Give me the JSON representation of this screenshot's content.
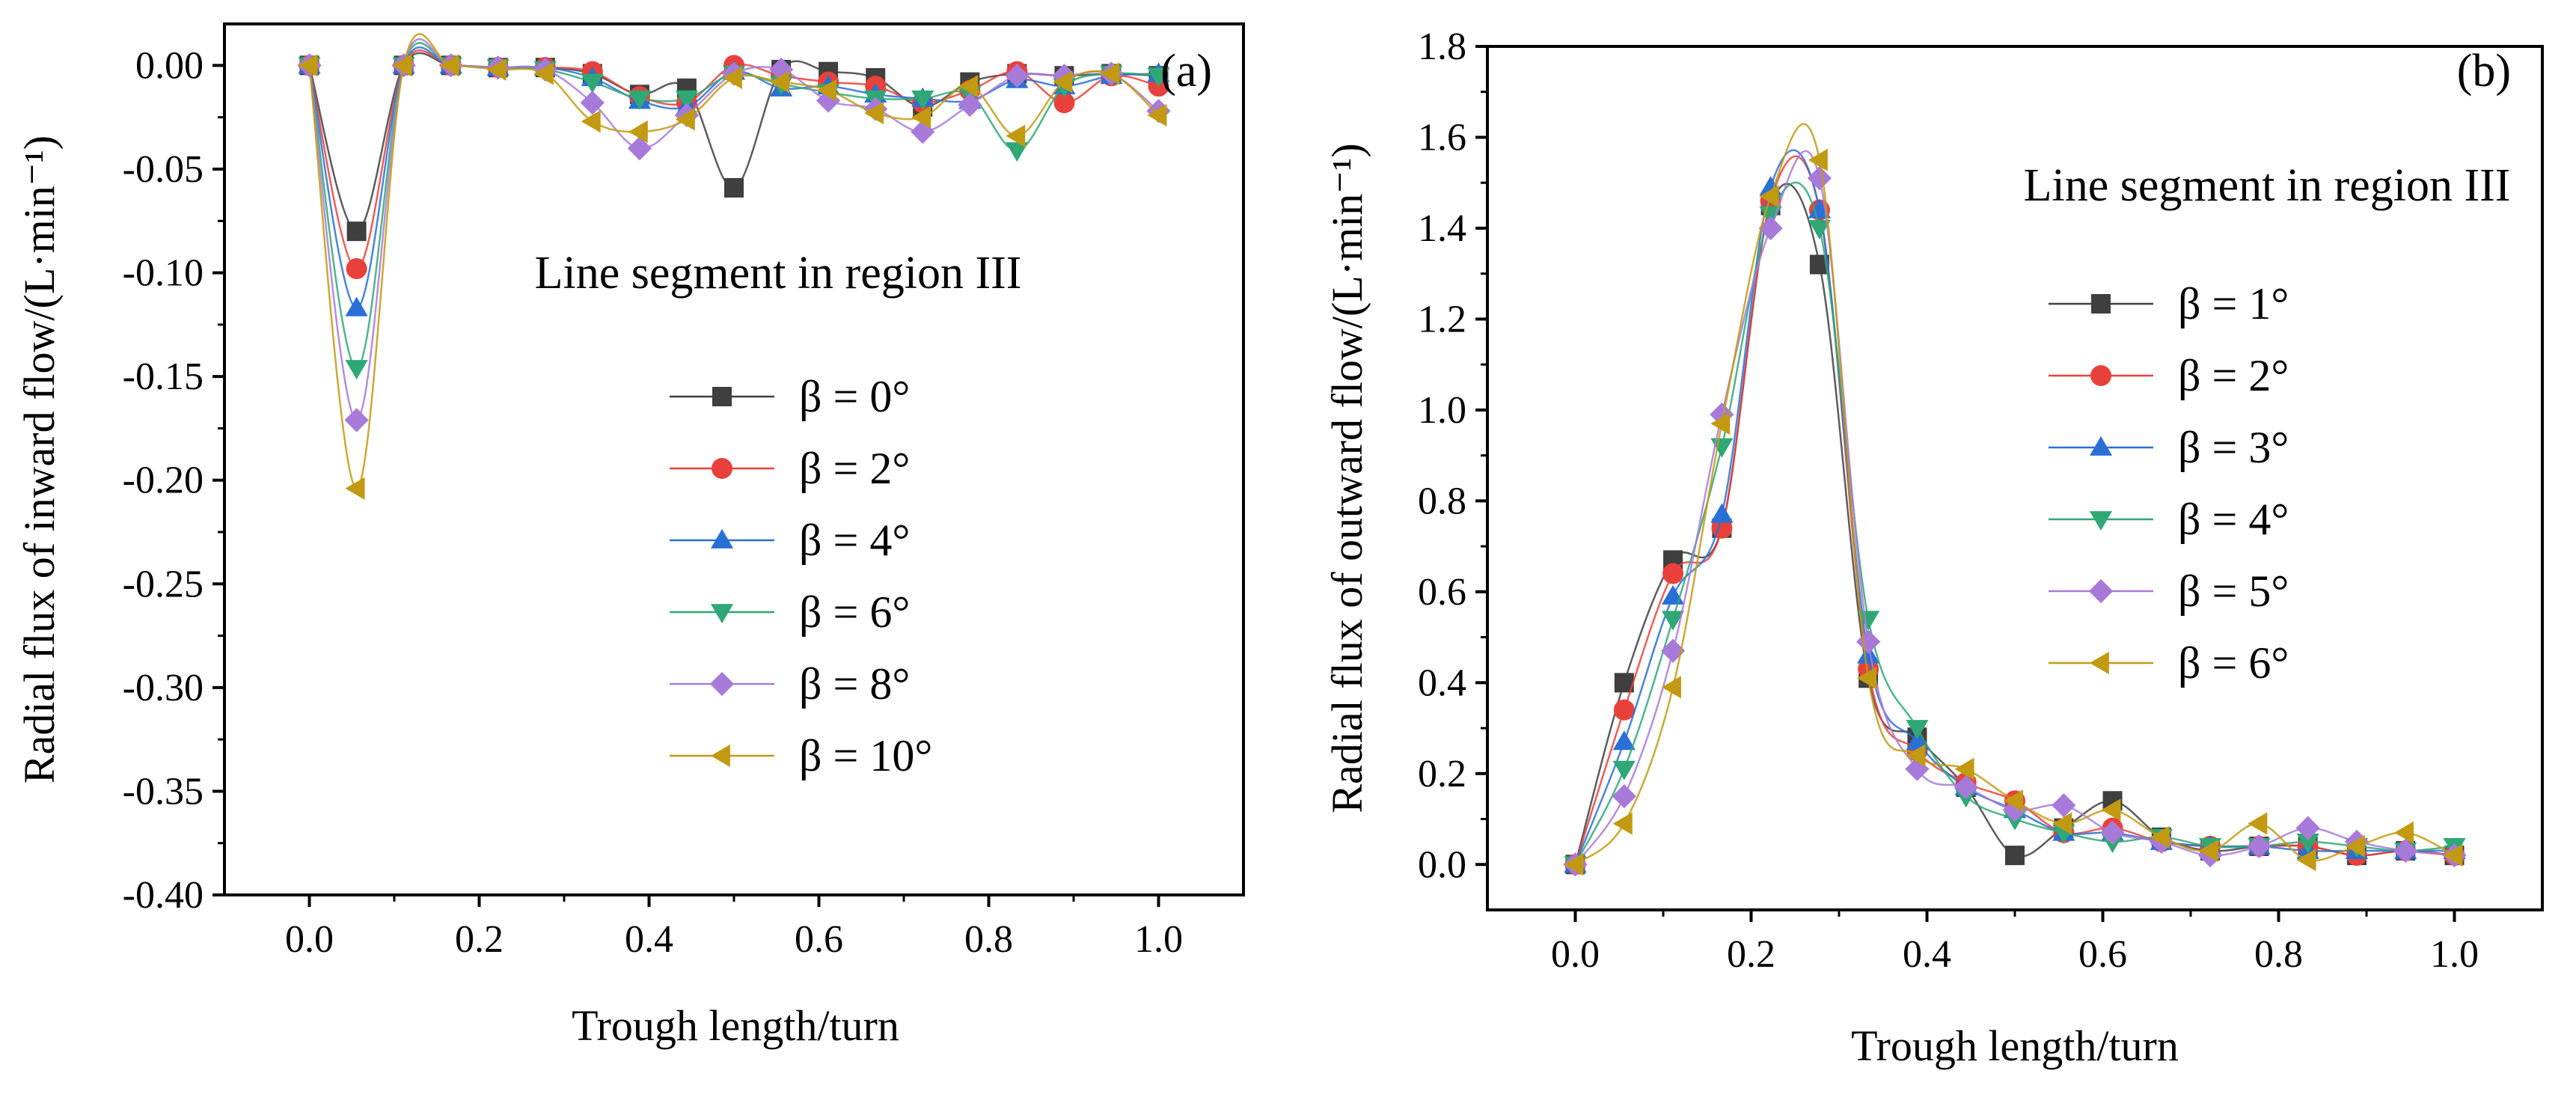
{
  "chart_data": [
    {
      "type": "line",
      "panel_label": "(a)",
      "annotation": "Line segment in region III",
      "xlabel": "Trough length/turn",
      "ylabel": "Radial flux of inward flow/(L·min⁻¹)",
      "xlim": [
        -0.1,
        1.1
      ],
      "ylim": [
        -0.4,
        0.02
      ],
      "xticks": [
        "0.0",
        "0.2",
        "0.4",
        "0.6",
        "0.8",
        "1.0"
      ],
      "yticks": [
        "0.00",
        "-0.05",
        "-0.10",
        "-0.15",
        "-0.20",
        "-0.25",
        "-0.30",
        "-0.35",
        "-0.40"
      ],
      "legend_position": "right-middle",
      "x": [
        0,
        0.0556,
        0.1111,
        0.1667,
        0.2222,
        0.2778,
        0.3333,
        0.3889,
        0.4444,
        0.5,
        0.5556,
        0.6111,
        0.6667,
        0.7222,
        0.7778,
        0.8333,
        0.8889,
        0.9444,
        1.0
      ],
      "series": [
        {
          "name": "β = 0°",
          "beta": "0°",
          "color": "#3f3f3f",
          "marker": "square",
          "values": [
            0,
            -0.08,
            0,
            0,
            -0.001,
            -0.001,
            -0.004,
            -0.014,
            -0.011,
            -0.059,
            -0.002,
            -0.003,
            -0.006,
            -0.02,
            -0.008,
            -0.004,
            -0.005,
            -0.004,
            -0.005
          ]
        },
        {
          "name": "β = 2°",
          "beta": "2°",
          "color": "#e8413c",
          "marker": "circle",
          "values": [
            0,
            -0.098,
            0,
            0,
            -0.001,
            -0.001,
            -0.003,
            -0.015,
            -0.018,
            0,
            -0.005,
            -0.008,
            -0.01,
            -0.018,
            -0.012,
            -0.003,
            -0.018,
            -0.005,
            -0.01
          ]
        },
        {
          "name": "β = 4°",
          "beta": "4°",
          "color": "#2a6fd6",
          "marker": "triangle-up",
          "values": [
            0,
            -0.117,
            0,
            0,
            -0.001,
            -0.001,
            -0.006,
            -0.017,
            -0.02,
            -0.003,
            -0.011,
            -0.01,
            -0.014,
            -0.016,
            -0.017,
            -0.007,
            -0.01,
            -0.005,
            -0.004
          ]
        },
        {
          "name": "β = 6°",
          "beta": "6°",
          "color": "#2fa876",
          "marker": "triangle-down",
          "values": [
            0,
            -0.146,
            0,
            0,
            -0.001,
            -0.002,
            -0.008,
            -0.016,
            -0.016,
            -0.004,
            -0.009,
            -0.013,
            -0.016,
            -0.016,
            -0.014,
            -0.041,
            -0.01,
            -0.004,
            -0.005
          ]
        },
        {
          "name": "β = 8°",
          "beta": "8°",
          "color": "#a77ad9",
          "marker": "diamond",
          "values": [
            0,
            -0.171,
            0,
            0,
            -0.001,
            -0.002,
            -0.018,
            -0.04,
            -0.024,
            -0.004,
            -0.002,
            -0.017,
            -0.021,
            -0.032,
            -0.019,
            -0.005,
            -0.005,
            -0.004,
            -0.022
          ]
        },
        {
          "name": "β = 10°",
          "beta": "10°",
          "color": "#c29a12",
          "marker": "triangle-left",
          "values": [
            0,
            -0.204,
            0,
            0,
            -0.002,
            -0.004,
            -0.027,
            -0.032,
            -0.026,
            -0.006,
            -0.008,
            -0.012,
            -0.023,
            -0.025,
            -0.01,
            -0.034,
            -0.008,
            -0.004,
            -0.024
          ]
        }
      ]
    },
    {
      "type": "line",
      "panel_label": "(b)",
      "annotation": "Line segment in region III",
      "xlabel": "Trough length/turn",
      "ylabel": "Radial flux of outward flow/(L·min⁻¹)",
      "xlim": [
        -0.1,
        1.1
      ],
      "ylim": [
        -0.1,
        1.8
      ],
      "xticks": [
        "0.0",
        "0.2",
        "0.4",
        "0.6",
        "0.8",
        "1.0"
      ],
      "yticks": [
        "0.0",
        "0.2",
        "0.4",
        "0.6",
        "0.8",
        "1.0",
        "1.2",
        "1.4",
        "1.6",
        "1.8"
      ],
      "legend_position": "right-middle",
      "x": [
        0,
        0.0556,
        0.1111,
        0.1667,
        0.2222,
        0.2778,
        0.3333,
        0.3889,
        0.4444,
        0.5,
        0.5556,
        0.6111,
        0.6667,
        0.7222,
        0.7778,
        0.8333,
        0.8889,
        0.9444,
        1.0
      ],
      "series": [
        {
          "name": "β = 1°",
          "beta": "1°",
          "color": "#3f3f3f",
          "marker": "square",
          "values": [
            0,
            0.4,
            0.67,
            0.74,
            1.45,
            1.32,
            0.41,
            0.28,
            0.17,
            0.02,
            0.08,
            0.14,
            0.06,
            0.03,
            0.04,
            0.04,
            0.02,
            0.03,
            0.02
          ]
        },
        {
          "name": "β = 2°",
          "beta": "2°",
          "color": "#e8413c",
          "marker": "circle",
          "values": [
            0,
            0.34,
            0.64,
            0.74,
            1.46,
            1.44,
            0.43,
            0.25,
            0.18,
            0.14,
            0.07,
            0.08,
            0.05,
            0.04,
            0.04,
            0.04,
            0.02,
            0.03,
            0.02
          ]
        },
        {
          "name": "β = 3°",
          "beta": "3°",
          "color": "#2a6fd6",
          "marker": "triangle-up",
          "values": [
            0,
            0.27,
            0.59,
            0.77,
            1.49,
            1.44,
            0.46,
            0.27,
            0.17,
            0.12,
            0.07,
            0.07,
            0.05,
            0.04,
            0.04,
            0.03,
            0.03,
            0.03,
            0.03
          ]
        },
        {
          "name": "β = 4°",
          "beta": "4°",
          "color": "#2fa876",
          "marker": "triangle-down",
          "values": [
            0,
            0.21,
            0.54,
            0.92,
            1.43,
            1.4,
            0.54,
            0.3,
            0.15,
            0.1,
            0.07,
            0.05,
            0.06,
            0.04,
            0.04,
            0.05,
            0.04,
            0.03,
            0.04
          ]
        },
        {
          "name": "β = 5°",
          "beta": "5°",
          "color": "#a77ad9",
          "marker": "diamond",
          "values": [
            0,
            0.15,
            0.47,
            0.99,
            1.4,
            1.51,
            0.49,
            0.21,
            0.17,
            0.12,
            0.13,
            0.07,
            0.05,
            0.02,
            0.04,
            0.08,
            0.05,
            0.03,
            0.02
          ]
        },
        {
          "name": "β = 6°",
          "beta": "6°",
          "color": "#c29a12",
          "marker": "triangle-left",
          "values": [
            0,
            0.09,
            0.39,
            0.97,
            1.47,
            1.55,
            0.41,
            0.24,
            0.21,
            0.14,
            0.09,
            0.12,
            0.06,
            0.03,
            0.09,
            0.01,
            0.04,
            0.07,
            0.02
          ]
        }
      ]
    }
  ]
}
